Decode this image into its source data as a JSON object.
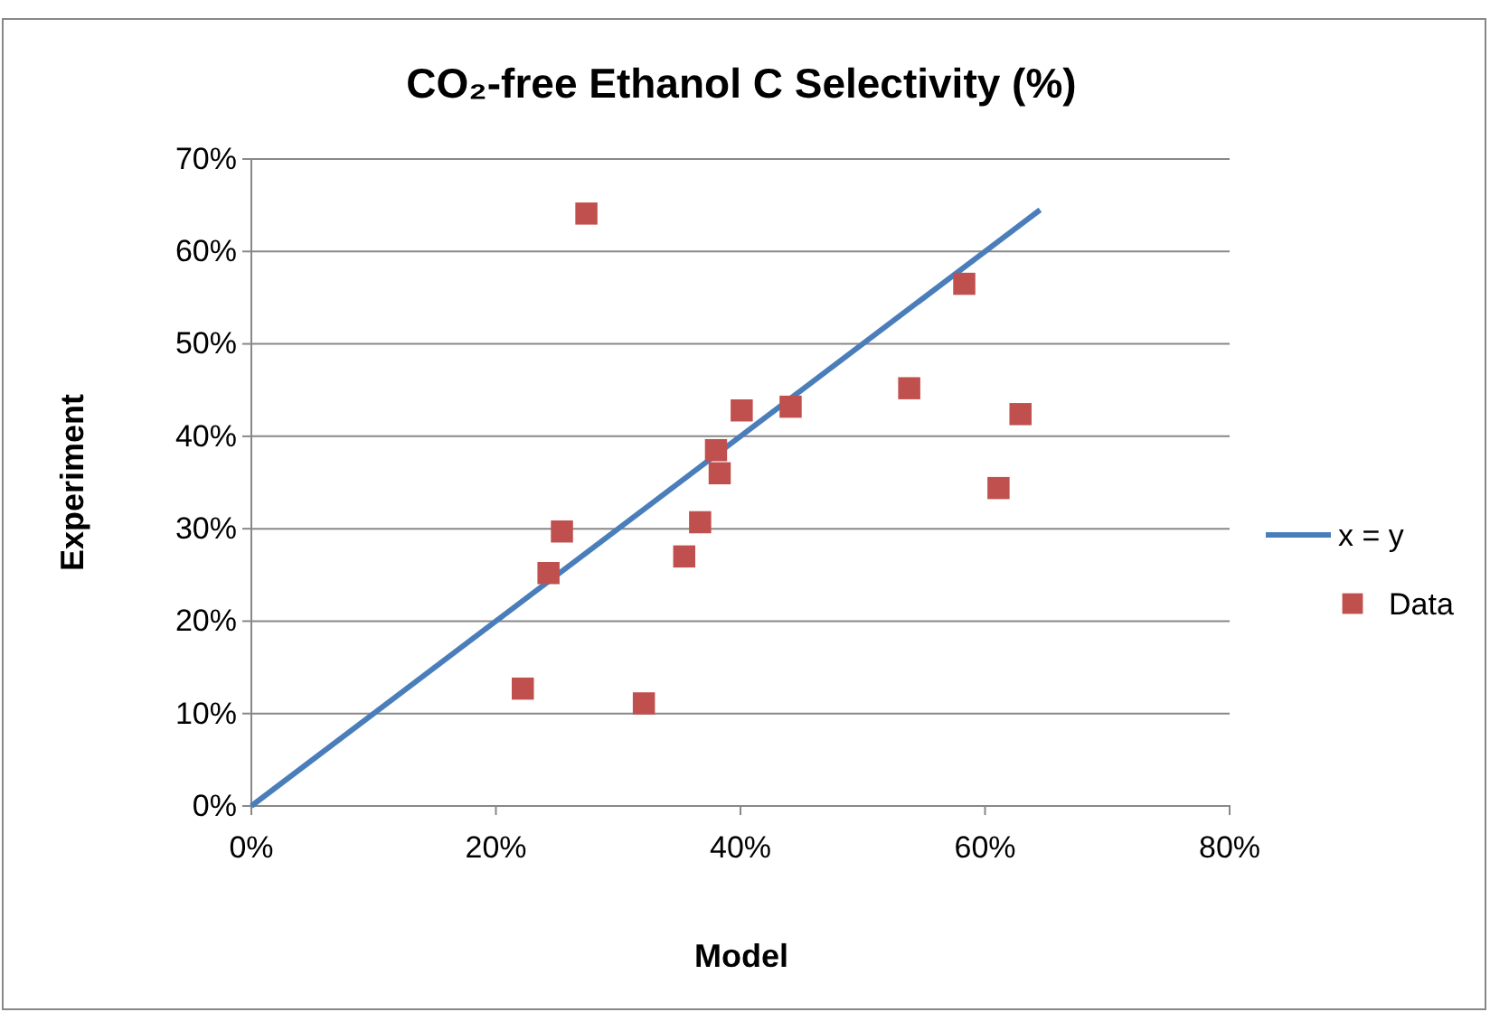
{
  "chart_data": {
    "type": "scatter",
    "title": "CO₂-free Ethanol C Selectivity (%)",
    "xlabel": "Model",
    "ylabel": "Experiment",
    "xlim": [
      0,
      80
    ],
    "xticks": [
      {
        "value": 0,
        "label": "0%"
      },
      {
        "value": 20,
        "label": "20%"
      },
      {
        "value": 40,
        "label": "40%"
      },
      {
        "value": 60,
        "label": "60%"
      },
      {
        "value": 80,
        "label": "80%"
      }
    ],
    "ylim": [
      0,
      70
    ],
    "yticks": [
      {
        "value": 0,
        "label": "0%"
      },
      {
        "value": 10,
        "label": "10%"
      },
      {
        "value": 20,
        "label": "20%"
      },
      {
        "value": 30,
        "label": "30%"
      },
      {
        "value": 40,
        "label": "40%"
      },
      {
        "value": 50,
        "label": "50%"
      },
      {
        "value": 60,
        "label": "60%"
      },
      {
        "value": 70,
        "label": "70%"
      }
    ],
    "grid": "y",
    "legend": "right",
    "series": [
      {
        "name": "x = y",
        "type": "line",
        "color": "#4a7ebb",
        "marker": "none",
        "x": [
          0,
          64.5
        ],
        "values": [
          0,
          64.5
        ]
      },
      {
        "name": "Data",
        "color": "#c0504d",
        "marker": "square",
        "x": [
          22.2,
          27.4,
          24.3,
          25.4,
          32.1,
          35.4,
          36.7,
          38.0,
          38.3,
          40.1,
          44.1,
          53.8,
          58.3,
          61.1,
          62.9
        ],
        "values": [
          12.7,
          64.1,
          25.2,
          29.7,
          11.1,
          27.0,
          30.7,
          38.5,
          36.0,
          42.8,
          43.2,
          45.2,
          56.5,
          34.4,
          42.4
        ]
      }
    ]
  }
}
